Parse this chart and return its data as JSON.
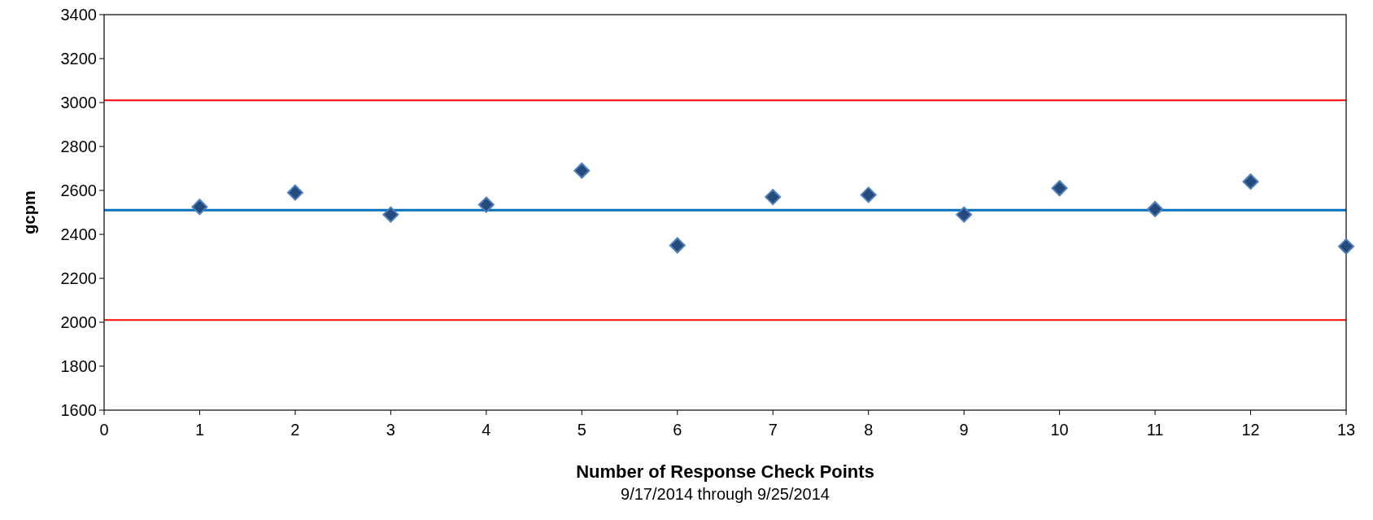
{
  "chart_data": {
    "type": "scatter",
    "xlabel": "Number of Response Check Points",
    "ylabel": "gcpm",
    "annotations": [
      "9/17/2014 through 9/25/2014"
    ],
    "x": [
      1,
      2,
      3,
      4,
      5,
      6,
      7,
      8,
      9,
      10,
      11,
      12,
      13
    ],
    "series": [
      {
        "color": "#254b7d",
        "values": [
          2525,
          2590,
          2490,
          2535,
          2690,
          2350,
          2570,
          2580,
          2490,
          2610,
          2515,
          2640,
          2345
        ]
      }
    ],
    "marker": "diamond",
    "xlim": [
      0,
      13
    ],
    "xticks": [
      0,
      1,
      2,
      3,
      4,
      5,
      6,
      7,
      8,
      9,
      10,
      11,
      12,
      13
    ],
    "ylim": [
      1600,
      3400
    ],
    "yticks": [
      1600,
      1800,
      2000,
      2200,
      2400,
      2600,
      2800,
      3000,
      3200,
      3400
    ],
    "grid": false,
    "ref_lines": [
      {
        "axis": "y",
        "value": 3010,
        "color": "#ff0000"
      },
      {
        "axis": "y",
        "value": 2510,
        "color": "#0070c0"
      },
      {
        "axis": "y",
        "value": 2010,
        "color": "#ff0000"
      }
    ]
  }
}
